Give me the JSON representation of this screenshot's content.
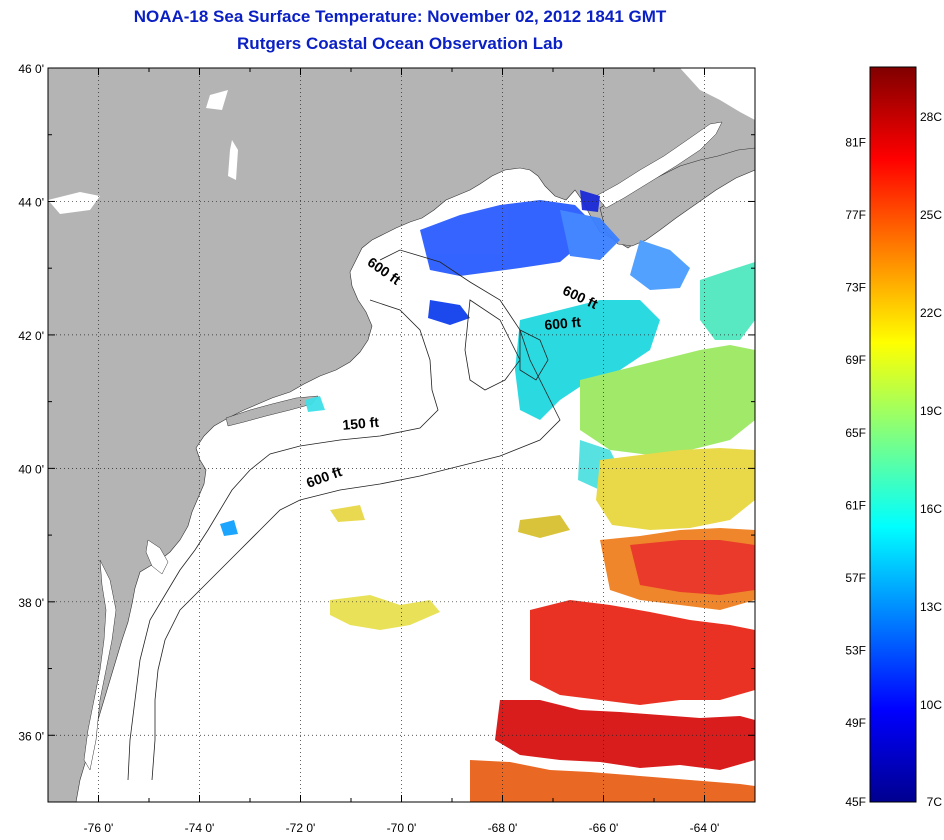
{
  "title": "NOAA-18 Sea Surface Temperature:  November 02, 2012 1841 GMT",
  "subtitle": "Rutgers Coastal Ocean Observation Lab",
  "map": {
    "lat_labels": [
      {
        "value": 46,
        "label": "46 0'"
      },
      {
        "value": 44,
        "label": "44 0'"
      },
      {
        "value": 42,
        "label": "42 0'"
      },
      {
        "value": 40,
        "label": "40 0'"
      },
      {
        "value": 38,
        "label": "38 0'"
      },
      {
        "value": 36,
        "label": "36 0'"
      }
    ],
    "lon_labels": [
      {
        "value": -76,
        "label": "-76 0'"
      },
      {
        "value": -74,
        "label": "-74 0'"
      },
      {
        "value": -72,
        "label": "-72 0'"
      },
      {
        "value": -70,
        "label": "-70 0'"
      },
      {
        "value": -68,
        "label": "-68 0'"
      },
      {
        "value": -66,
        "label": "-66 0'"
      },
      {
        "value": -64,
        "label": "-64 0'"
      }
    ],
    "lat_range": [
      35,
      46
    ],
    "lon_range": [
      -77,
      -63
    ],
    "grid": "dotted",
    "land_color": "#b4b4b4",
    "ocean_color": "#ffffff",
    "isobath_labels": [
      {
        "label": "600 ft",
        "lon": -70.4,
        "lat": 42.9
      },
      {
        "label": "600 ft",
        "lon": -66.5,
        "lat": 42.5
      },
      {
        "label": "600 ft",
        "lon": -66.8,
        "lat": 42.1
      },
      {
        "label": "150 ft",
        "lon": -70.8,
        "lat": 40.6
      },
      {
        "label": "600 ft",
        "lon": -71.5,
        "lat": 39.8
      }
    ]
  },
  "colorbar": {
    "fahrenheit": [
      "81F",
      "77F",
      "73F",
      "69F",
      "65F",
      "61F",
      "57F",
      "53F",
      "49F",
      "45F"
    ],
    "celsius": [
      "28C",
      "25C",
      "22C",
      "19C",
      "16C",
      "13C",
      "10C",
      "7C"
    ],
    "range_c": [
      7,
      29.5
    ],
    "colors": [
      "#00008f",
      "#0000ff",
      "#0080ff",
      "#00ffff",
      "#80ff80",
      "#ffff00",
      "#ff8000",
      "#ff0000",
      "#800000"
    ]
  }
}
